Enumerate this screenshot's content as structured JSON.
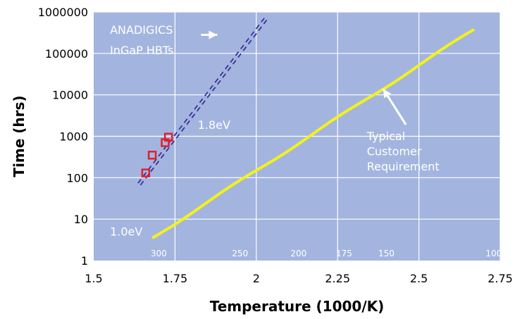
{
  "colors": {
    "plot_background": "#a3b5df",
    "grid": "#ffffff",
    "customer_line": "#f4f21a",
    "anadigics_line": "#3a2f9a",
    "marker": "#e0202c",
    "annotation_text": "#ffffff"
  },
  "chart_data": {
    "type": "line",
    "title": "",
    "xlabel": "Temperature (1000/K)",
    "ylabel": "Time (hrs)",
    "xlim": [
      1.5,
      2.75
    ],
    "ylim": [
      1,
      1000000
    ],
    "y_scale": "log",
    "grid": true,
    "x_ticks": [
      1.5,
      1.75,
      2,
      2.25,
      2.5,
      2.75
    ],
    "x_tick_labels": [
      "1.5",
      "1.75",
      "2",
      "2.25",
      "2.5",
      "2.75"
    ],
    "y_ticks": [
      1,
      10,
      100,
      1000,
      10000,
      100000,
      1000000
    ],
    "y_tick_labels": [
      "1",
      "10",
      "100",
      "1000",
      "10000",
      "100000",
      "1000000"
    ],
    "kelvin_labels": [
      {
        "x": 1.7,
        "text": "300"
      },
      {
        "x": 1.95,
        "text": "250"
      },
      {
        "x": 2.13,
        "text": "200"
      },
      {
        "x": 2.27,
        "text": "175"
      },
      {
        "x": 2.4,
        "text": "150"
      },
      {
        "x": 2.73,
        "text": "100"
      }
    ],
    "series": [
      {
        "style": "dashed",
        "x": [
          1.64,
          2.03
        ],
        "y": [
          70,
          700000
        ]
      },
      {
        "style": "solid",
        "x": [
          1.68,
          2.67
        ],
        "y": [
          3.5,
          380000
        ]
      },
      {
        "style": "markers",
        "x": [
          1.66,
          1.68,
          1.72,
          1.73
        ],
        "y": [
          130,
          350,
          700,
          950
        ]
      }
    ],
    "annotations": [
      {
        "text": "ANADIGICS",
        "x": 1.55,
        "y": 300000
      },
      {
        "text": "InGaP HBTs",
        "x": 1.55,
        "y": 95000
      },
      {
        "text": "1.8eV",
        "x": 1.82,
        "y": 1500
      },
      {
        "text": "1.0eV",
        "x": 1.55,
        "y": 4
      },
      {
        "text": "Typical",
        "x": 2.34,
        "y": 800
      },
      {
        "text": "Customer",
        "x": 2.34,
        "y": 350
      },
      {
        "text": "Requirement",
        "x": 2.34,
        "y": 150
      }
    ]
  }
}
